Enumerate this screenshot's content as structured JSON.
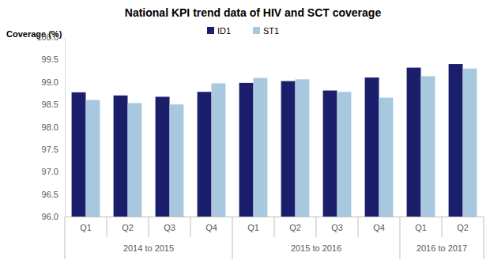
{
  "chart_data": {
    "type": "bar",
    "title": "National KPI trend data of HIV and SCT coverage",
    "y_label": "Coverage (%)",
    "categories": [
      "Q1",
      "Q2",
      "Q3",
      "Q4",
      "Q1",
      "Q2",
      "Q3",
      "Q4",
      "Q1",
      "Q2"
    ],
    "category_groups": [
      {
        "label": "2014 to 2015",
        "span": 4
      },
      {
        "label": "2015 to 2016",
        "span": 4
      },
      {
        "label": "2016 to 2017",
        "span": 2
      }
    ],
    "series": [
      {
        "name": "ID1",
        "color": "#1b1f6b",
        "values": [
          98.77,
          98.7,
          98.67,
          98.78,
          98.98,
          99.02,
          98.81,
          99.1,
          99.32,
          99.4
        ]
      },
      {
        "name": "ST1",
        "color": "#a8c8e0",
        "values": [
          98.6,
          98.53,
          98.5,
          98.97,
          99.09,
          99.06,
          98.78,
          98.65,
          99.13,
          99.3
        ]
      }
    ],
    "ylim": [
      96,
      100
    ],
    "yticks": [
      {
        "value": 96,
        "label": "96.0"
      },
      {
        "value": 96.5,
        "label": "96.5"
      },
      {
        "value": 97,
        "label": "97.0"
      },
      {
        "value": 97.5,
        "label": "97.5"
      },
      {
        "value": 98,
        "label": "98.0"
      },
      {
        "value": 98.5,
        "label": "98.5"
      },
      {
        "value": 99,
        "label": "99.0"
      },
      {
        "value": 99.5,
        "label": "99.5"
      },
      {
        "value": 100,
        "label": "100.0"
      }
    ],
    "grid": false,
    "legend": "top"
  }
}
